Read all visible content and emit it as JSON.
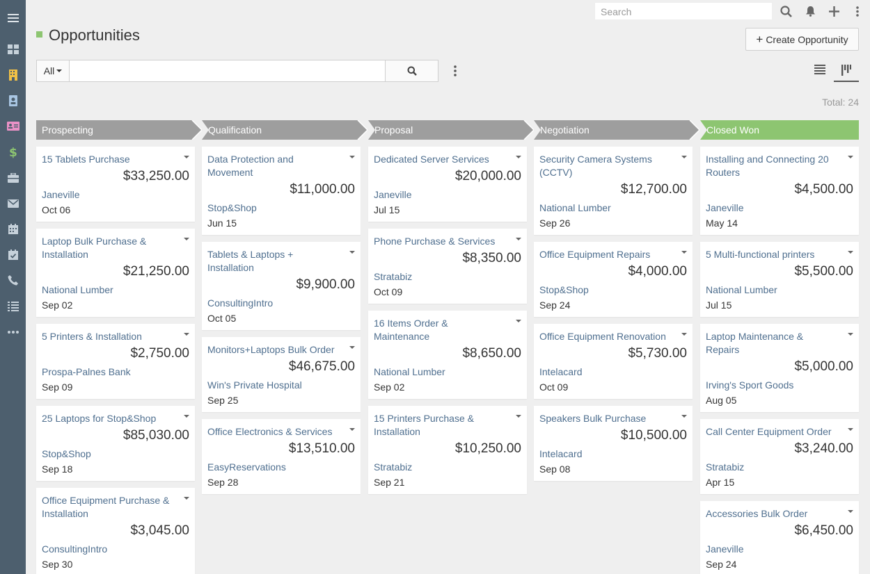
{
  "sidebar": {
    "items": [
      {
        "icon": "menu-icon"
      },
      {
        "icon": "dashboard-icon"
      },
      {
        "icon": "accounts-icon"
      },
      {
        "icon": "contacts-icon"
      },
      {
        "icon": "leads-icon"
      },
      {
        "icon": "opportunities-icon"
      },
      {
        "icon": "cases-icon"
      },
      {
        "icon": "email-icon"
      },
      {
        "icon": "calendar-icon"
      },
      {
        "icon": "tasks-icon"
      },
      {
        "icon": "calls-icon"
      },
      {
        "icon": "list-icon"
      },
      {
        "icon": "more-icon"
      }
    ]
  },
  "topbar": {
    "search_placeholder": "Search"
  },
  "header": {
    "title": "Opportunities",
    "create_label": "Create Opportunity",
    "create_plus": "+"
  },
  "filter": {
    "scope_label": "All",
    "total_label": "Total: 24"
  },
  "colors": {
    "accent_green": "#8dc571",
    "stage_gray": "#9e9e9e",
    "link_blue": "#4f6f8f",
    "sidebar_bg": "#4d5f6e"
  },
  "columns": [
    {
      "stage": "Prospecting",
      "cards": [
        {
          "name": "15 Tablets Purchase",
          "amount": "$33,250.00",
          "account": "Janeville",
          "date": "Oct 06"
        },
        {
          "name": "Laptop Bulk Purchase & Installation",
          "amount": "$21,250.00",
          "account": "National Lumber",
          "date": "Sep 02"
        },
        {
          "name": "5 Printers & Installation",
          "amount": "$2,750.00",
          "account": "Prospa-Palnes Bank",
          "date": "Sep 09"
        },
        {
          "name": "25 Laptops for Stop&Shop",
          "amount": "$85,030.00",
          "account": "Stop&Shop",
          "date": "Sep 18"
        },
        {
          "name": "Office Equipment Purchase & Installation",
          "amount": "$3,045.00",
          "account": "ConsultingIntro",
          "date": "Sep 30"
        }
      ]
    },
    {
      "stage": "Qualification",
      "cards": [
        {
          "name": "Data Protection and Movement",
          "amount": "$11,000.00",
          "account": "Stop&Shop",
          "date": "Jun 15"
        },
        {
          "name": "Tablets & Laptops + Installation",
          "amount": "$9,900.00",
          "account": "ConsultingIntro",
          "date": "Oct 05"
        },
        {
          "name": "Monitors+Laptops Bulk Order",
          "amount": "$46,675.00",
          "account": "Win's Private Hospital",
          "date": "Sep 25"
        },
        {
          "name": "Office Electronics & Services",
          "amount": "$13,510.00",
          "account": "EasyReservations",
          "date": "Sep 28"
        }
      ]
    },
    {
      "stage": "Proposal",
      "cards": [
        {
          "name": "Dedicated Server Services",
          "amount": "$20,000.00",
          "account": "Janeville",
          "date": "Jul 15"
        },
        {
          "name": "Phone Purchase & Services",
          "amount": "$8,350.00",
          "account": "Stratabiz",
          "date": "Oct 09"
        },
        {
          "name": "16 Items Order & Maintenance",
          "amount": "$8,650.00",
          "account": "National Lumber",
          "date": "Sep 02"
        },
        {
          "name": "15 Printers Purchase & Installation",
          "amount": "$10,250.00",
          "account": "Stratabiz",
          "date": "Sep 21"
        }
      ]
    },
    {
      "stage": "Negotiation",
      "cards": [
        {
          "name": "Security Camera Systems (CCTV)",
          "amount": "$12,700.00",
          "account": "National Lumber",
          "date": "Sep 26"
        },
        {
          "name": "Office Equipment Repairs",
          "amount": "$4,000.00",
          "account": "Stop&Shop",
          "date": "Sep 24"
        },
        {
          "name": "Office Equipment Renovation",
          "amount": "$5,730.00",
          "account": "Intelacard",
          "date": "Oct 09"
        },
        {
          "name": "Speakers Bulk Purchase",
          "amount": "$10,500.00",
          "account": "Intelacard",
          "date": "Sep 08"
        }
      ]
    },
    {
      "stage": "Closed Won",
      "cards": [
        {
          "name": "Installing and Connecting 20 Routers",
          "amount": "$4,500.00",
          "account": "Janeville",
          "date": "May 14"
        },
        {
          "name": "5 Multi-functional printers",
          "amount": "$5,500.00",
          "account": "National Lumber",
          "date": "Jul 15"
        },
        {
          "name": "Laptop Maintenance & Repairs",
          "amount": "$5,000.00",
          "account": "Irving's Sport Goods",
          "date": "Aug 05"
        },
        {
          "name": "Call Center Equipment Order",
          "amount": "$3,240.00",
          "account": "Stratabiz",
          "date": "Apr 15"
        },
        {
          "name": "Accessories Bulk Order",
          "amount": "$6,450.00",
          "account": "Janeville",
          "date": "Sep 24"
        }
      ]
    }
  ]
}
